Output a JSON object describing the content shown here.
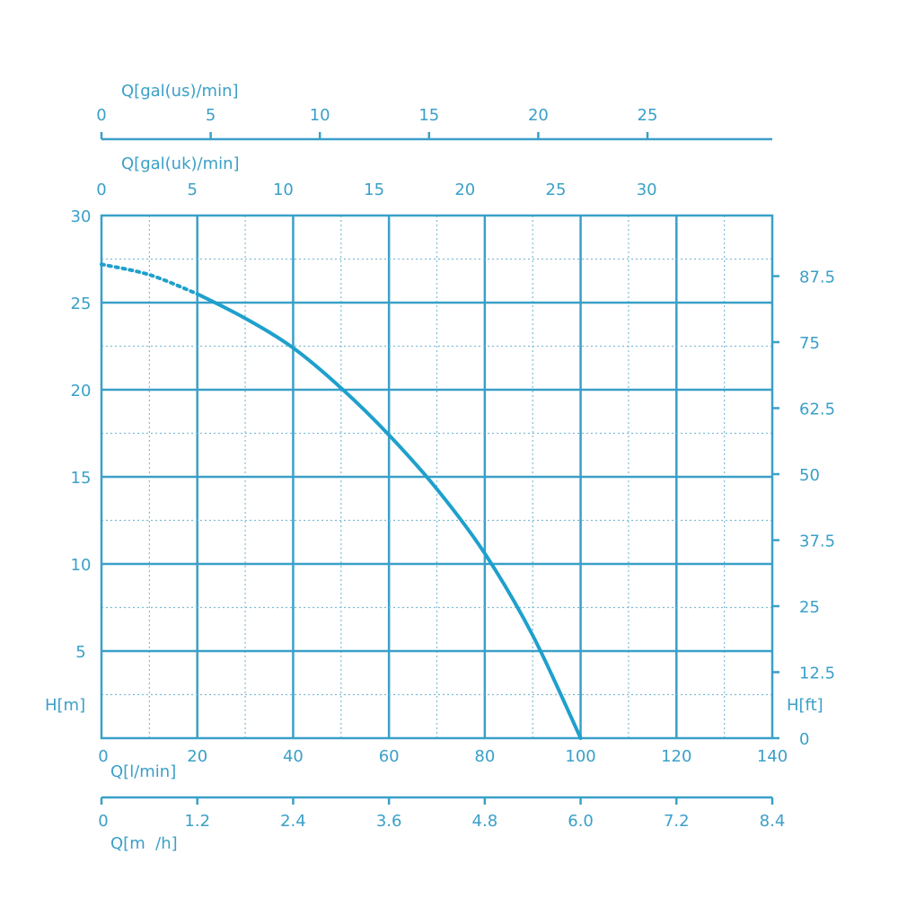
{
  "chart_data": {
    "type": "line",
    "title": "",
    "colors": {
      "line": "#3aa0c8",
      "curve": "#1fa0cc"
    },
    "grid": true,
    "x": {
      "label": "Q[l/min]",
      "range": [
        0,
        140
      ],
      "ticks": [
        "0",
        "20",
        "40",
        "60",
        "80",
        "100",
        "120",
        "140"
      ]
    },
    "y": {
      "label": "H[m]",
      "range": [
        0,
        30
      ],
      "ticks": [
        "5",
        "10",
        "15",
        "20",
        "25",
        "30"
      ]
    },
    "y2": {
      "label": "H[ft]",
      "ticks": [
        "0",
        "12.5",
        "25",
        "37.5",
        "50",
        "62.5",
        "75",
        "87.5"
      ]
    },
    "x_top_us": {
      "label": "Q[gal(us)/min]",
      "ticks": [
        "0",
        "5",
        "10",
        "15",
        "20",
        "25"
      ]
    },
    "x_top_uk": {
      "label": "Q[gal(uk)/min]",
      "ticks": [
        "0",
        "5",
        "10",
        "15",
        "20",
        "25",
        "30"
      ]
    },
    "x_bottom2": {
      "label": "Q[m  /h]",
      "ticks": [
        "0",
        "1.2",
        "2.4",
        "3.6",
        "4.8",
        "6.0",
        "7.2",
        "8.4"
      ]
    },
    "series": [
      {
        "extrapolated": [
          [
            0,
            27.2
          ],
          [
            10,
            26.6
          ],
          [
            20,
            25.5
          ]
        ],
        "measured": [
          [
            20,
            25.5
          ],
          [
            30,
            24.1
          ],
          [
            40,
            22.4
          ],
          [
            50,
            20.1
          ],
          [
            60,
            17.4
          ],
          [
            70,
            14.3
          ],
          [
            80,
            10.6
          ],
          [
            90,
            5.9
          ],
          [
            100,
            0
          ]
        ]
      }
    ]
  }
}
